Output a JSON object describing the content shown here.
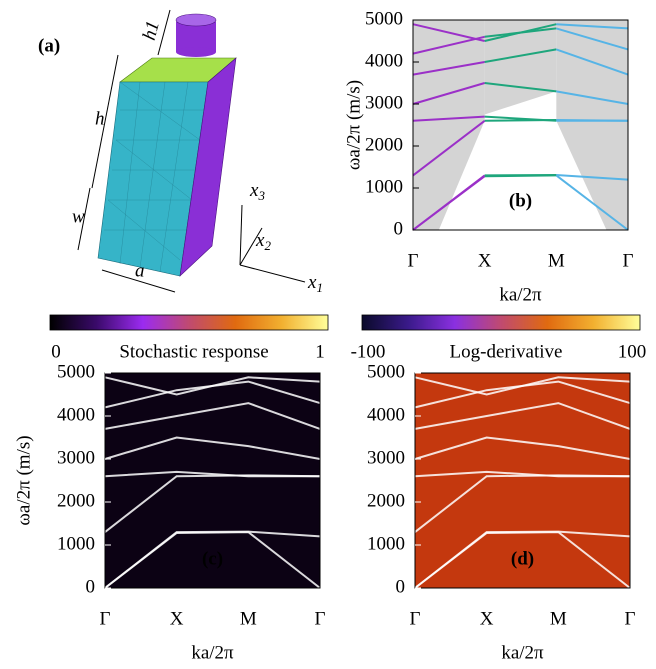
{
  "panel_a": {
    "label": "(a)",
    "dimensions": [
      "h1",
      "h",
      "w",
      "a"
    ],
    "axes": [
      {
        "symbol": "x",
        "index": "3"
      },
      {
        "symbol": "x",
        "index": "2"
      },
      {
        "symbol": "x",
        "index": "1"
      }
    ]
  },
  "chart_data": [
    {
      "type": "line",
      "panel_label": "(b)",
      "ylabel": "ωa/2π (m/s)",
      "xlabel": "ka/2π",
      "categories": [
        "Γ",
        "X",
        "M",
        "Γ"
      ],
      "ylim": [
        0,
        5000
      ],
      "yticks": [
        0,
        1000,
        2000,
        3000,
        4000,
        5000
      ],
      "segment_colors": [
        "#9b30c8",
        "#1ea67c",
        "#56b4e6"
      ],
      "series": [
        {
          "values": [
            0,
            1280,
            1300,
            0
          ]
        },
        {
          "values": [
            0,
            1300,
            1310,
            1200
          ]
        },
        {
          "values": [
            1300,
            2600,
            2620,
            2600
          ]
        },
        {
          "values": [
            2600,
            2700,
            2600,
            2600
          ]
        },
        {
          "values": [
            3000,
            3500,
            3300,
            3000
          ]
        },
        {
          "values": [
            3700,
            4000,
            4300,
            3700
          ]
        },
        {
          "values": [
            4200,
            4600,
            4800,
            4300
          ]
        },
        {
          "values": [
            4900,
            4500,
            4900,
            4800
          ]
        }
      ]
    },
    {
      "type": "heatmap",
      "panel_label": "(c)",
      "ylabel": "ωa/2π (m/s)",
      "xlabel": "ka/2π",
      "categories": [
        "Γ",
        "X",
        "M",
        "Γ"
      ],
      "ylim": [
        0,
        5000
      ],
      "yticks": [
        0,
        1000,
        2000,
        3000,
        4000,
        5000
      ],
      "colorbar_label": "Stochastic response",
      "colorbar_ticks": [
        0,
        1
      ],
      "background": "#0c0214",
      "colormap": [
        "#000000",
        "#3a0a6a",
        "#9b2bf0",
        "#c04a70",
        "#e06a10",
        "#f2b030",
        "#ffff9a"
      ]
    },
    {
      "type": "heatmap",
      "panel_label": "(d)",
      "xlabel": "ka/2π",
      "categories": [
        "Γ",
        "X",
        "M",
        "Γ"
      ],
      "ylim": [
        0,
        5000
      ],
      "yticks": [
        0,
        1000,
        2000,
        3000,
        4000,
        5000
      ],
      "colorbar_label": "Log-derivative",
      "colorbar_ticks": [
        -100,
        100
      ],
      "background": "#c4380e",
      "colormap": [
        "#0a0a2a",
        "#3a1a8a",
        "#8a30e0",
        "#c04a70",
        "#e06a10",
        "#f2b030",
        "#ffff9a"
      ]
    }
  ]
}
